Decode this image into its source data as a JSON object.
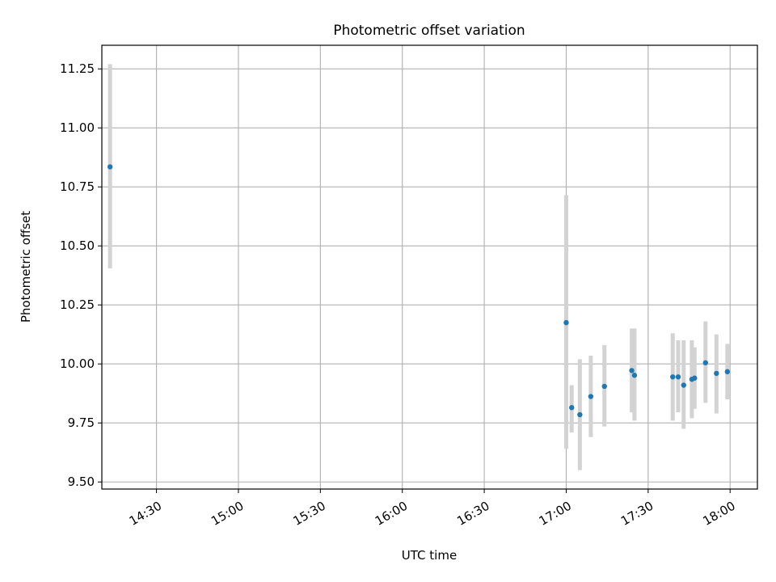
{
  "chart_data": {
    "type": "scatter",
    "title": "Photometric offset variation",
    "xlabel": "UTC time",
    "ylabel": "Photometric offset",
    "xlim": [
      "14:10",
      "18:10"
    ],
    "ylim": [
      9.47,
      11.35
    ],
    "grid": true,
    "x_ticks": [
      "14:30",
      "15:00",
      "15:30",
      "16:00",
      "16:30",
      "17:00",
      "17:30",
      "18:00"
    ],
    "y_ticks": [
      "9.50",
      "9.75",
      "10.00",
      "10.25",
      "10.50",
      "10.75",
      "11.00",
      "11.25"
    ],
    "colors": {
      "point": "#1f77b4",
      "errorbar": "#d3d3d3",
      "grid": "#b0b0b0"
    },
    "series": [
      {
        "name": "Photometric offset",
        "x": [
          "14:13",
          "17:00",
          "17:02",
          "17:05",
          "17:09",
          "17:14",
          "17:24",
          "17:25",
          "17:39",
          "17:41",
          "17:43",
          "17:46",
          "17:47",
          "17:51",
          "17:55",
          "17:59"
        ],
        "y": [
          10.835,
          10.175,
          9.815,
          9.785,
          9.862,
          9.905,
          9.972,
          9.952,
          9.945,
          9.945,
          9.91,
          9.935,
          9.94,
          10.005,
          9.96,
          9.967
        ],
        "err_low": [
          10.405,
          9.64,
          9.71,
          9.55,
          9.69,
          9.735,
          9.795,
          9.76,
          9.76,
          9.795,
          9.725,
          9.77,
          9.81,
          9.835,
          9.79,
          9.85
        ],
        "err_high": [
          11.27,
          10.715,
          9.91,
          10.02,
          10.035,
          10.08,
          10.15,
          10.15,
          10.13,
          10.1,
          10.1,
          10.1,
          10.07,
          10.18,
          10.125,
          10.085
        ]
      }
    ]
  }
}
